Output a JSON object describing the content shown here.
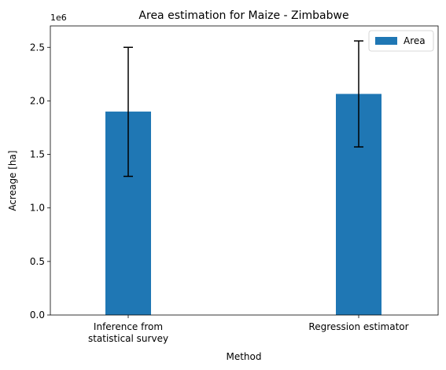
{
  "chart_data": {
    "type": "bar",
    "title": "Area estimation for Maize - Zimbabwe",
    "xlabel": "Method",
    "ylabel": "Acreage [ha]",
    "y_offset_label": "1e6",
    "categories": [
      "Inference from\nstatistical survey",
      "Regression estimator"
    ],
    "series": [
      {
        "name": "Area",
        "color": "#1f77b4",
        "values": [
          1900000,
          2065000
        ],
        "error_low": [
          1295000,
          1570000
        ],
        "error_high": [
          2500000,
          2560000
        ]
      }
    ],
    "ylim": [
      0,
      2700000
    ],
    "yticks": [
      0,
      500000,
      1000000,
      1500000,
      2000000,
      2500000
    ],
    "ytick_labels": [
      "0.0",
      "0.5",
      "1.0",
      "1.5",
      "2.0",
      "2.5"
    ],
    "grid": false,
    "legend_position": "top-right"
  }
}
